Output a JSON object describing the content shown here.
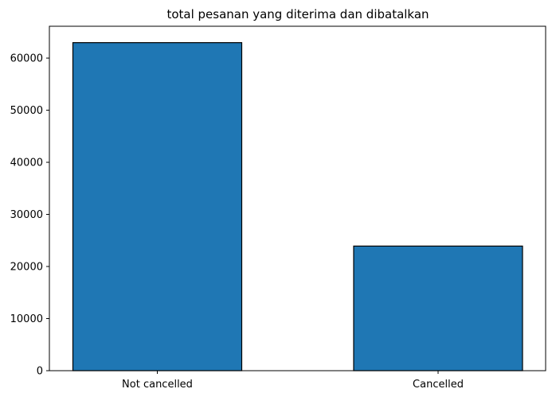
{
  "chart_data": {
    "type": "bar",
    "title": "total pesanan yang diterima dan dibatalkan",
    "xlabel": "",
    "ylabel": "",
    "categories": [
      "Not cancelled",
      "Cancelled"
    ],
    "values": [
      62966,
      23919
    ],
    "ylim": [
      0,
      66114
    ],
    "yticks": [
      0,
      10000,
      20000,
      30000,
      40000,
      50000,
      60000
    ],
    "grid": false,
    "legend": "none",
    "bar_color": "#1f77b4",
    "edge_color": "#000000"
  }
}
